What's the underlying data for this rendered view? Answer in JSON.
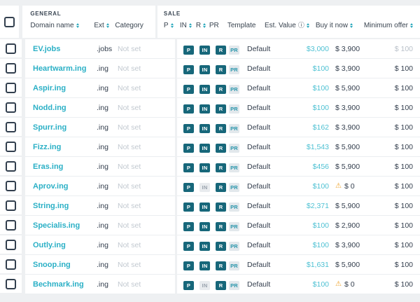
{
  "header": {
    "general_label": "General",
    "sale_label": "Sale",
    "columns": {
      "domain": "Domain name",
      "ext": "Ext",
      "category": "Category",
      "p": "P",
      "in": "IN",
      "r": "R",
      "pr": "PR",
      "template": "Template",
      "est_value": "Est. Value",
      "buy_now": "Buy it now",
      "min_offer": "Minimum offer"
    }
  },
  "badge_labels": {
    "p": "P",
    "in": "IN",
    "r": "R",
    "pr": "PR"
  },
  "icons": {
    "info": "ⓘ",
    "warning": "⚠"
  },
  "colors": {
    "accent_teal": "#2bb0c6",
    "est_value_teal": "#4ec1d3",
    "badge_dark_teal": "#17677a",
    "badge_inactive_bg": "#e8ebee",
    "pr_badge_text": "#2895ab",
    "warning_amber": "#efa32b",
    "text_navy": "#333e4d",
    "muted_gray": "#c2c9d0",
    "page_bg": "#eef0f2"
  },
  "rows": [
    {
      "domain": "EV.jobs",
      "ext": ".jobs",
      "category": "Not set",
      "badges": {
        "p": true,
        "in": true,
        "r": true
      },
      "template": "Default",
      "est_value": "$3,000",
      "buy_now": "$ 3,900",
      "buy_now_warning": false,
      "min_offer": "$ 100",
      "min_offer_muted": true
    },
    {
      "domain": "Heartwarm.ing",
      "ext": ".ing",
      "category": "Not set",
      "badges": {
        "p": true,
        "in": true,
        "r": true
      },
      "template": "Default",
      "est_value": "$100",
      "buy_now": "$ 3,900",
      "buy_now_warning": false,
      "min_offer": "$ 100",
      "min_offer_muted": false
    },
    {
      "domain": "Aspir.ing",
      "ext": ".ing",
      "category": "Not set",
      "badges": {
        "p": true,
        "in": true,
        "r": true
      },
      "template": "Default",
      "est_value": "$100",
      "buy_now": "$ 5,900",
      "buy_now_warning": false,
      "min_offer": "$ 100",
      "min_offer_muted": false
    },
    {
      "domain": "Nodd.ing",
      "ext": ".ing",
      "category": "Not set",
      "badges": {
        "p": true,
        "in": true,
        "r": true
      },
      "template": "Default",
      "est_value": "$100",
      "buy_now": "$ 3,900",
      "buy_now_warning": false,
      "min_offer": "$ 100",
      "min_offer_muted": false
    },
    {
      "domain": "Spurr.ing",
      "ext": ".ing",
      "category": "Not set",
      "badges": {
        "p": true,
        "in": true,
        "r": true
      },
      "template": "Default",
      "est_value": "$162",
      "buy_now": "$ 3,900",
      "buy_now_warning": false,
      "min_offer": "$ 100",
      "min_offer_muted": false
    },
    {
      "domain": "Fizz.ing",
      "ext": ".ing",
      "category": "Not set",
      "badges": {
        "p": true,
        "in": true,
        "r": true
      },
      "template": "Default",
      "est_value": "$1,543",
      "buy_now": "$ 5,900",
      "buy_now_warning": false,
      "min_offer": "$ 100",
      "min_offer_muted": false
    },
    {
      "domain": "Eras.ing",
      "ext": ".ing",
      "category": "Not set",
      "badges": {
        "p": true,
        "in": true,
        "r": true
      },
      "template": "Default",
      "est_value": "$456",
      "buy_now": "$ 5,900",
      "buy_now_warning": false,
      "min_offer": "$ 100",
      "min_offer_muted": false
    },
    {
      "domain": "Aprov.ing",
      "ext": ".ing",
      "category": "Not set",
      "badges": {
        "p": true,
        "in": false,
        "r": true
      },
      "template": "Default",
      "est_value": "$100",
      "buy_now": "$ 0",
      "buy_now_warning": true,
      "min_offer": "$ 100",
      "min_offer_muted": false
    },
    {
      "domain": "String.ing",
      "ext": ".ing",
      "category": "Not set",
      "badges": {
        "p": true,
        "in": true,
        "r": true
      },
      "template": "Default",
      "est_value": "$2,371",
      "buy_now": "$ 5,900",
      "buy_now_warning": false,
      "min_offer": "$ 100",
      "min_offer_muted": false
    },
    {
      "domain": "Specialis.ing",
      "ext": ".ing",
      "category": "Not set",
      "badges": {
        "p": true,
        "in": true,
        "r": true
      },
      "template": "Default",
      "est_value": "$100",
      "buy_now": "$ 2,900",
      "buy_now_warning": false,
      "min_offer": "$ 100",
      "min_offer_muted": false
    },
    {
      "domain": "Outly.ing",
      "ext": ".ing",
      "category": "Not set",
      "badges": {
        "p": true,
        "in": true,
        "r": true
      },
      "template": "Default",
      "est_value": "$100",
      "buy_now": "$ 3,900",
      "buy_now_warning": false,
      "min_offer": "$ 100",
      "min_offer_muted": false
    },
    {
      "domain": "Snoop.ing",
      "ext": ".ing",
      "category": "Not set",
      "badges": {
        "p": true,
        "in": true,
        "r": true
      },
      "template": "Default",
      "est_value": "$1,631",
      "buy_now": "$ 5,900",
      "buy_now_warning": false,
      "min_offer": "$ 100",
      "min_offer_muted": false
    },
    {
      "domain": "Bechmark.ing",
      "ext": ".ing",
      "category": "Not set",
      "badges": {
        "p": true,
        "in": false,
        "r": true
      },
      "template": "Default",
      "est_value": "$100",
      "buy_now": "$ 0",
      "buy_now_warning": true,
      "min_offer": "$ 100",
      "min_offer_muted": false
    }
  ]
}
